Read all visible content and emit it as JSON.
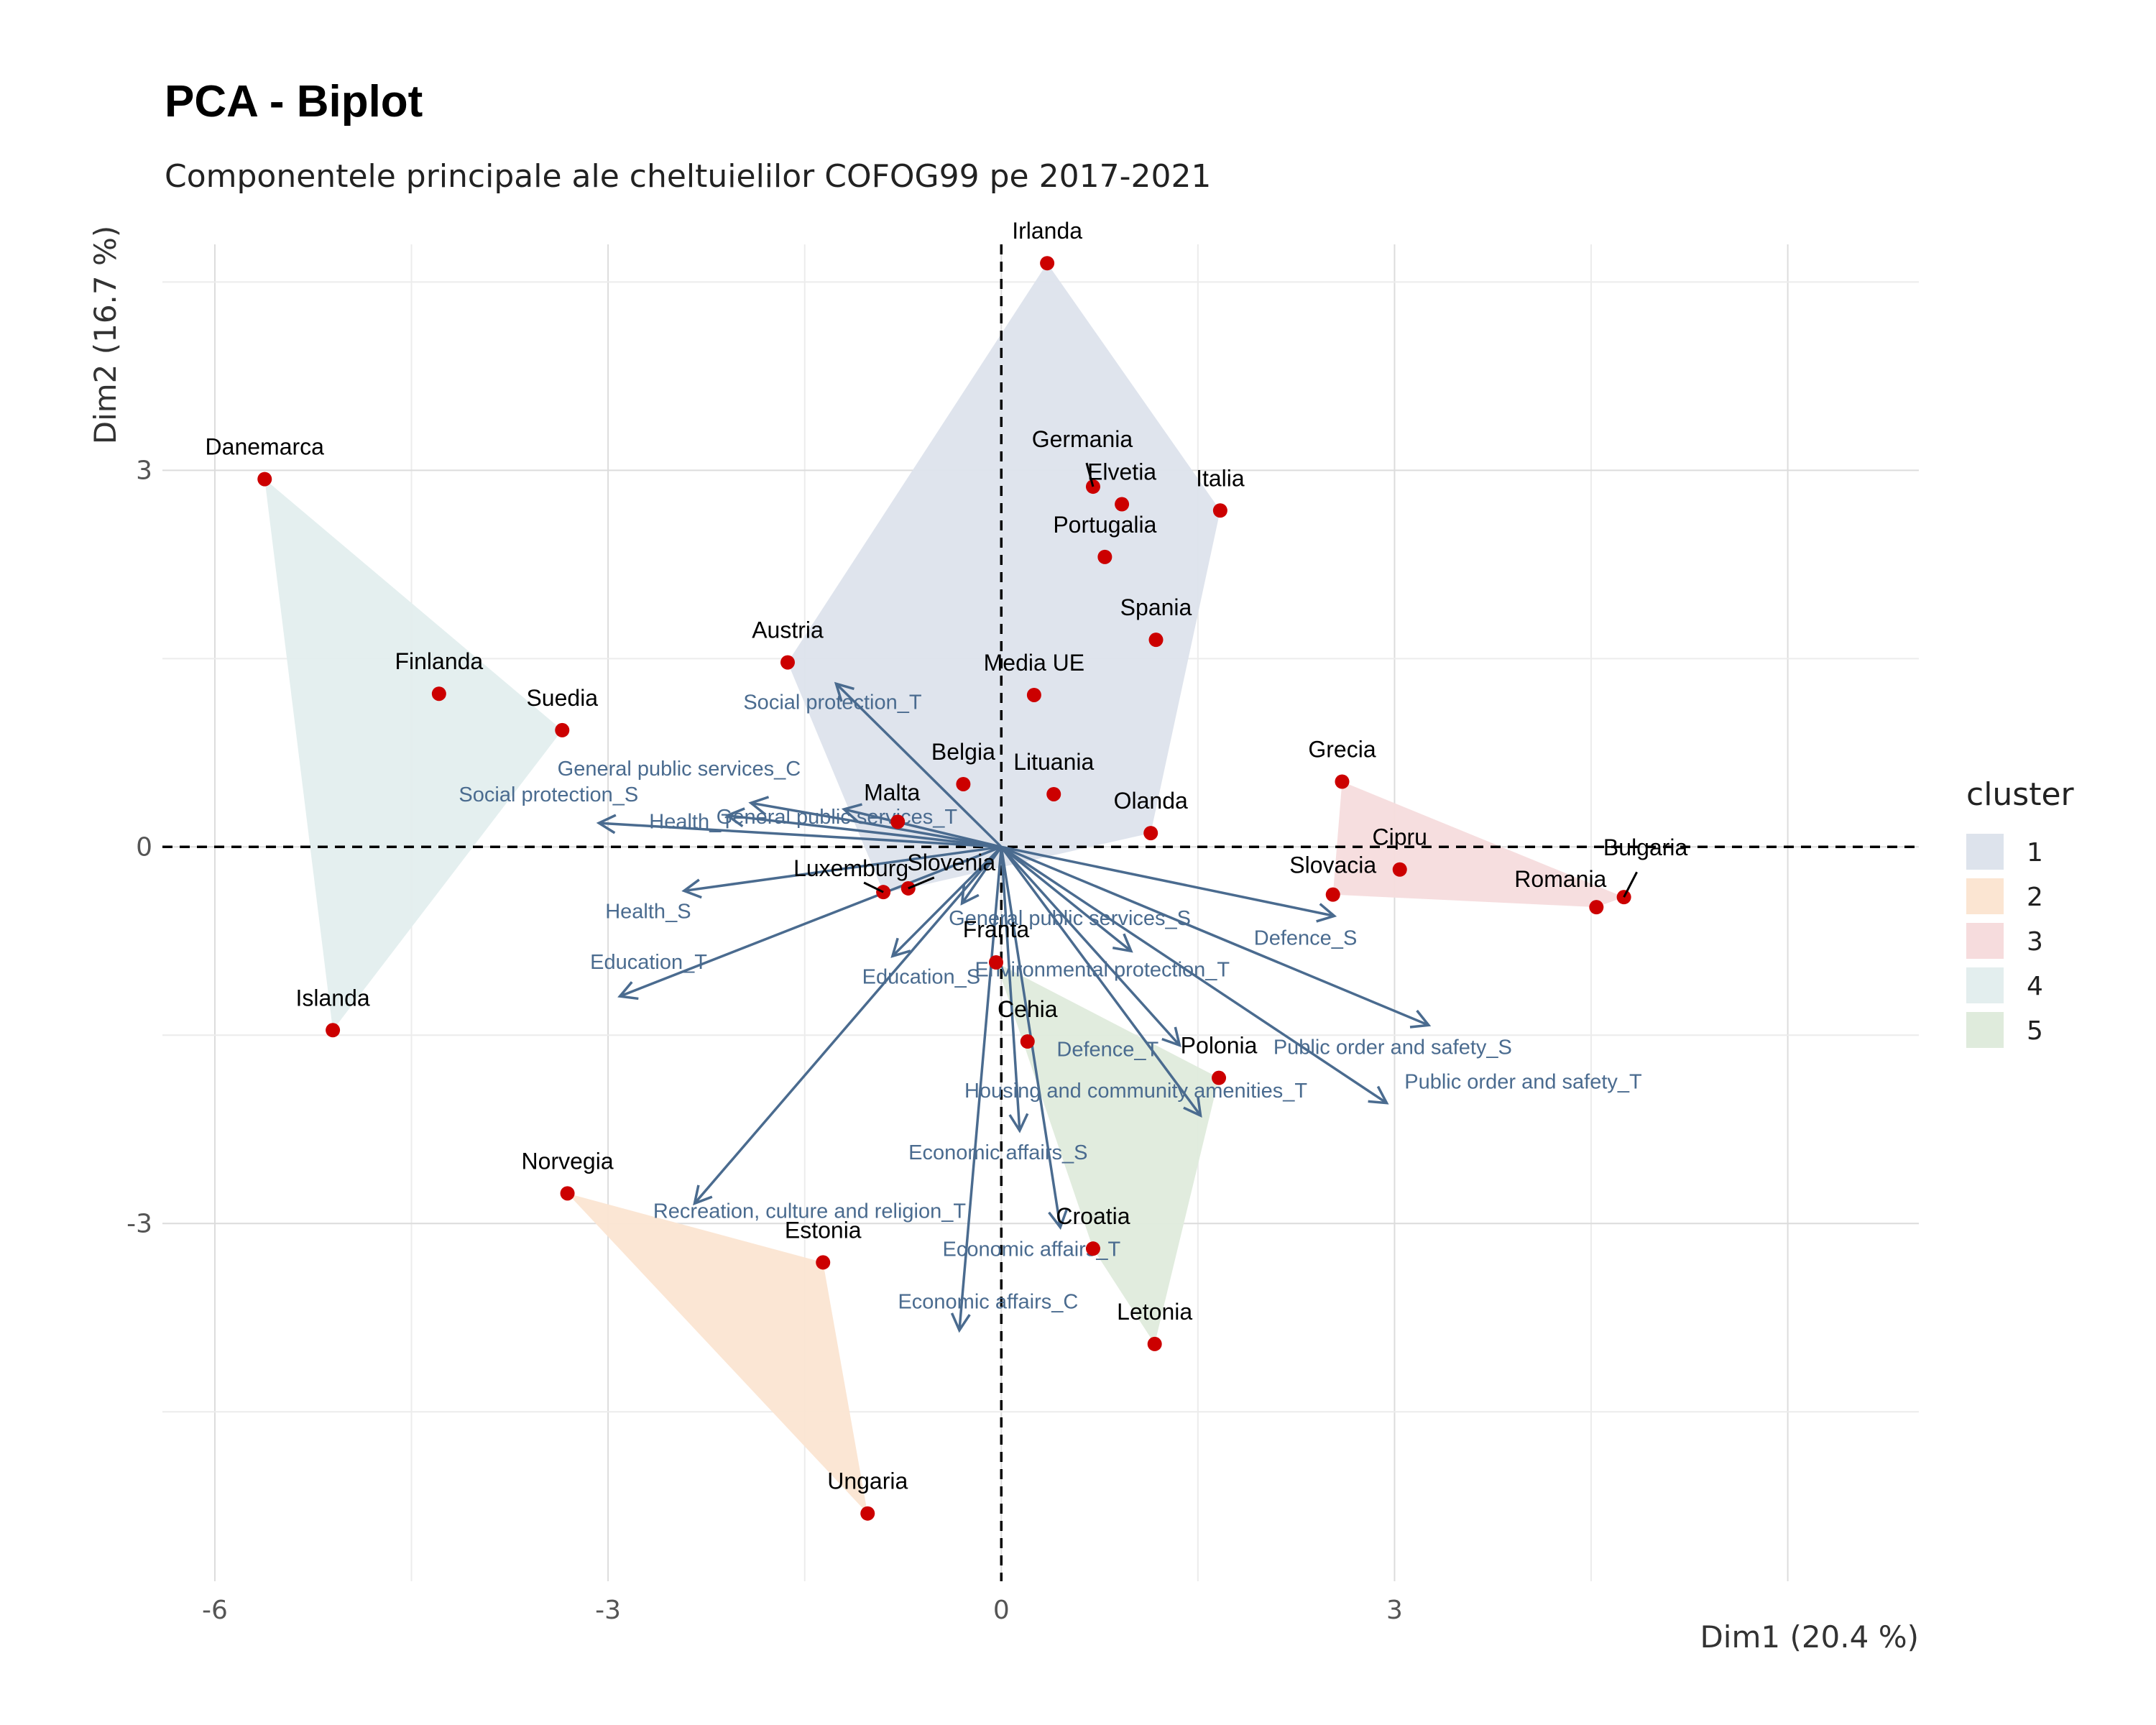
{
  "title": "PCA - Biplot",
  "subtitle": "Componentele principale ale cheltuielilor COFOG99 pe 2017-2021",
  "chart_data": {
    "type": "scatter",
    "xlabel": "Dim1 (20.4 %)",
    "ylabel": "Dim2 (16.7 %)",
    "xlim": [
      -6.4,
      7.0
    ],
    "ylim": [
      -5.85,
      4.8
    ],
    "xticks": [
      -6,
      -3,
      0,
      3
    ],
    "xtick_labels": [
      "-6",
      "-3",
      "0",
      "3"
    ],
    "yticks": [
      -3,
      0,
      3
    ],
    "ytick_labels": [
      "-3",
      "0",
      "3"
    ],
    "grid": true,
    "reference_lines": {
      "x": 0,
      "y": 0,
      "style": "dashed"
    },
    "legend": {
      "title": "cluster",
      "placement": "right",
      "entries": [
        {
          "label": "1",
          "color": "#dde3ec"
        },
        {
          "label": "2",
          "color": "#fbe5d2"
        },
        {
          "label": "3",
          "color": "#f6dcdd"
        },
        {
          "label": "4",
          "color": "#e3eeee"
        },
        {
          "label": "5",
          "color": "#dfebdc"
        }
      ]
    },
    "point_color": "#cc0000",
    "arrow_color": "#4a6b8f",
    "individuals": [
      {
        "name": "Irlanda",
        "x": 0.35,
        "y": 4.65,
        "cluster": "1"
      },
      {
        "name": "Germania",
        "x": 0.7,
        "y": 2.87,
        "cluster": "1"
      },
      {
        "name": "Elvetia",
        "x": 0.92,
        "y": 2.73,
        "cluster": "1"
      },
      {
        "name": "Italia",
        "x": 1.67,
        "y": 2.68,
        "cluster": "1"
      },
      {
        "name": "Portugalia",
        "x": 0.79,
        "y": 2.31,
        "cluster": "1"
      },
      {
        "name": "Spania",
        "x": 1.18,
        "y": 1.65,
        "cluster": "1"
      },
      {
        "name": "Austria",
        "x": -1.63,
        "y": 1.47,
        "cluster": "1"
      },
      {
        "name": "Media UE",
        "x": 0.25,
        "y": 1.21,
        "cluster": "1"
      },
      {
        "name": "Belgia",
        "x": -0.29,
        "y": 0.5,
        "cluster": "1"
      },
      {
        "name": "Lituania",
        "x": 0.4,
        "y": 0.42,
        "cluster": "1"
      },
      {
        "name": "Olanda",
        "x": 1.14,
        "y": 0.11,
        "cluster": "1"
      },
      {
        "name": "Malta",
        "x": -0.79,
        "y": 0.2,
        "cluster": "1"
      },
      {
        "name": "Slovenia",
        "x": -0.71,
        "y": -0.33,
        "cluster": "1"
      },
      {
        "name": "Luxemburg",
        "x": -0.9,
        "y": -0.36,
        "cluster": "1"
      },
      {
        "name": "Norvegia",
        "x": -3.31,
        "y": -2.76,
        "cluster": "2"
      },
      {
        "name": "Estonia",
        "x": -1.36,
        "y": -3.31,
        "cluster": "2"
      },
      {
        "name": "Ungaria",
        "x": -1.02,
        "y": -5.31,
        "cluster": "2"
      },
      {
        "name": "Grecia",
        "x": 2.6,
        "y": 0.52,
        "cluster": "3"
      },
      {
        "name": "Cipru",
        "x": 3.04,
        "y": -0.18,
        "cluster": "3"
      },
      {
        "name": "Bulgaria",
        "x": 4.75,
        "y": -0.4,
        "cluster": "3"
      },
      {
        "name": "Romania",
        "x": 4.54,
        "y": -0.48,
        "cluster": "3"
      },
      {
        "name": "Slovacia",
        "x": 2.53,
        "y": -0.38,
        "cluster": "3"
      },
      {
        "name": "Danemarca",
        "x": -5.62,
        "y": 2.93,
        "cluster": "4"
      },
      {
        "name": "Finlanda",
        "x": -4.29,
        "y": 1.22,
        "cluster": "4"
      },
      {
        "name": "Suedia",
        "x": -3.35,
        "y": 0.93,
        "cluster": "4"
      },
      {
        "name": "Islanda",
        "x": -5.1,
        "y": -1.46,
        "cluster": "4"
      },
      {
        "name": "Franta",
        "x": -0.04,
        "y": -0.92,
        "cluster": "5"
      },
      {
        "name": "Cehia",
        "x": 0.2,
        "y": -1.55,
        "cluster": "5"
      },
      {
        "name": "Polonia",
        "x": 1.66,
        "y": -1.84,
        "cluster": "5"
      },
      {
        "name": "Croatia",
        "x": 0.7,
        "y": -3.2,
        "cluster": "5"
      },
      {
        "name": "Letonia",
        "x": 1.17,
        "y": -3.96,
        "cluster": "5"
      }
    ],
    "variables": [
      {
        "name": "Social protection_T",
        "x": -1.26,
        "y": 1.3
      },
      {
        "name": "Social protection_S",
        "x": -3.07,
        "y": 0.19
      },
      {
        "name": "General public services_C",
        "x": -1.91,
        "y": 0.35
      },
      {
        "name": "Health_T",
        "x": -2.09,
        "y": 0.25
      },
      {
        "name": "General public services_T",
        "x": -1.2,
        "y": 0.3
      },
      {
        "name": "Health_S",
        "x": -2.42,
        "y": -0.35
      },
      {
        "name": "Education_T",
        "x": -2.91,
        "y": -1.19
      },
      {
        "name": "General public services_S",
        "x": -0.3,
        "y": -0.45
      },
      {
        "name": "Education_S",
        "x": -0.83,
        "y": -0.87
      },
      {
        "name": "Recreation, culture and religion_T",
        "x": -2.34,
        "y": -2.84
      },
      {
        "name": "Economic affairs_C",
        "x": -0.32,
        "y": -3.85
      },
      {
        "name": "Economic affairs_S",
        "x": 0.14,
        "y": -2.26
      },
      {
        "name": "Economic affairs_T",
        "x": 0.45,
        "y": -3.03
      },
      {
        "name": "Environmental protection_T",
        "x": 0.99,
        "y": -0.83
      },
      {
        "name": "Defence_T",
        "x": 1.36,
        "y": -1.58
      },
      {
        "name": "Housing and community amenities_T",
        "x": 1.52,
        "y": -2.14
      },
      {
        "name": "Defence_S",
        "x": 2.54,
        "y": -0.55
      },
      {
        "name": "Public order and safety_S",
        "x": 3.26,
        "y": -1.42
      },
      {
        "name": "Public order and safety_T",
        "x": 2.94,
        "y": -2.04
      }
    ]
  }
}
